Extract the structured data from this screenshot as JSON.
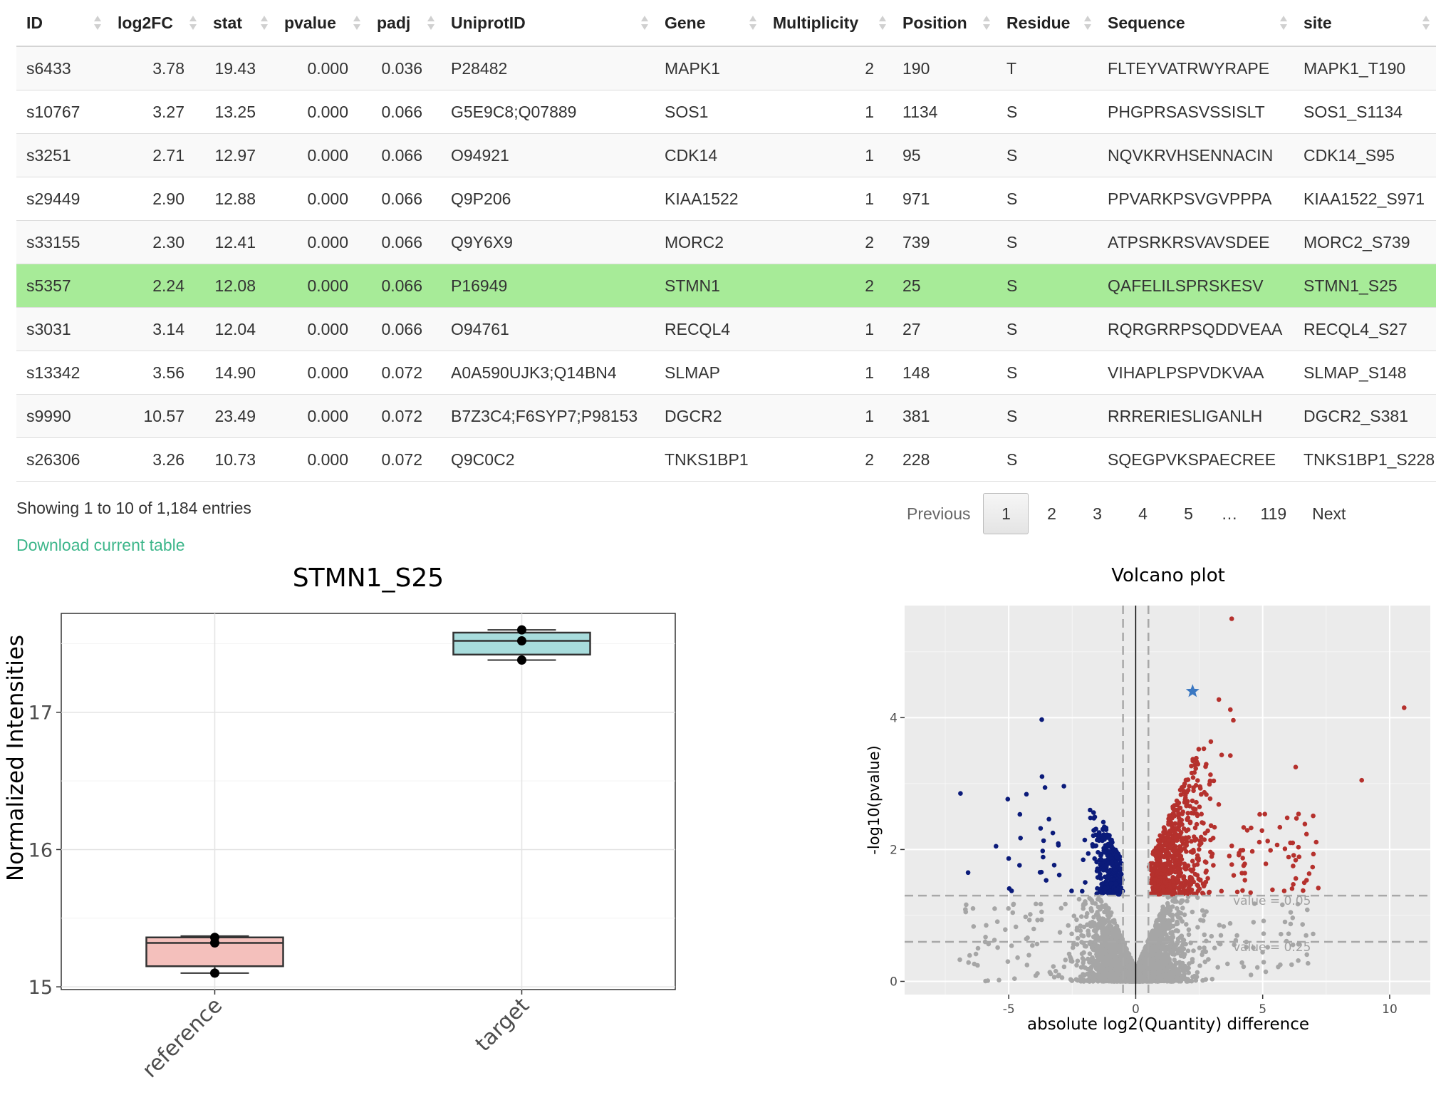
{
  "table": {
    "columns": [
      {
        "key": "id",
        "label": "ID",
        "width": 128,
        "align": "left"
      },
      {
        "key": "log2fc",
        "label": "log2FC",
        "width": 134,
        "align": "right"
      },
      {
        "key": "stat",
        "label": "stat",
        "width": 100,
        "align": "right"
      },
      {
        "key": "pvalue",
        "label": "pvalue",
        "width": 130,
        "align": "right"
      },
      {
        "key": "padj",
        "label": "padj",
        "width": 104,
        "align": "right"
      },
      {
        "key": "uniprot",
        "label": "UniprotID",
        "width": 300,
        "align": "left"
      },
      {
        "key": "gene",
        "label": "Gene",
        "width": 152,
        "align": "left"
      },
      {
        "key": "multiplicity",
        "label": "Multiplicity",
        "width": 182,
        "align": "right"
      },
      {
        "key": "position",
        "label": "Position",
        "width": 146,
        "align": "left"
      },
      {
        "key": "residue",
        "label": "Residue",
        "width": 142,
        "align": "left"
      },
      {
        "key": "sequence",
        "label": "Sequence",
        "width": 275,
        "align": "left"
      },
      {
        "key": "site",
        "label": "site",
        "width": 200,
        "align": "left"
      }
    ],
    "selected_row": 5,
    "rows": [
      {
        "id": "s6433",
        "log2fc": "3.78",
        "stat": "19.43",
        "pvalue": "0.000",
        "padj": "0.036",
        "uniprot": "P28482",
        "gene": "MAPK1",
        "multiplicity": "2",
        "position": "190",
        "residue": "T",
        "sequence": "FLTEYVATRWYRAPE",
        "site": "MAPK1_T190"
      },
      {
        "id": "s10767",
        "log2fc": "3.27",
        "stat": "13.25",
        "pvalue": "0.000",
        "padj": "0.066",
        "uniprot": "G5E9C8;Q07889",
        "gene": "SOS1",
        "multiplicity": "1",
        "position": "1134",
        "residue": "S",
        "sequence": "PHGPRSASVSSISLT",
        "site": "SOS1_S1134"
      },
      {
        "id": "s3251",
        "log2fc": "2.71",
        "stat": "12.97",
        "pvalue": "0.000",
        "padj": "0.066",
        "uniprot": "O94921",
        "gene": "CDK14",
        "multiplicity": "1",
        "position": "95",
        "residue": "S",
        "sequence": "NQVKRVHSENNACIN",
        "site": "CDK14_S95"
      },
      {
        "id": "s29449",
        "log2fc": "2.90",
        "stat": "12.88",
        "pvalue": "0.000",
        "padj": "0.066",
        "uniprot": "Q9P206",
        "gene": "KIAA1522",
        "multiplicity": "1",
        "position": "971",
        "residue": "S",
        "sequence": "PPVARKPSVGVPPPA",
        "site": "KIAA1522_S971"
      },
      {
        "id": "s33155",
        "log2fc": "2.30",
        "stat": "12.41",
        "pvalue": "0.000",
        "padj": "0.066",
        "uniprot": "Q9Y6X9",
        "gene": "MORC2",
        "multiplicity": "2",
        "position": "739",
        "residue": "S",
        "sequence": "ATPSRKRSVAVSDEE",
        "site": "MORC2_S739"
      },
      {
        "id": "s5357",
        "log2fc": "2.24",
        "stat": "12.08",
        "pvalue": "0.000",
        "padj": "0.066",
        "uniprot": "P16949",
        "gene": "STMN1",
        "multiplicity": "2",
        "position": "25",
        "residue": "S",
        "sequence": "QAFELILSPRSKESV",
        "site": "STMN1_S25"
      },
      {
        "id": "s3031",
        "log2fc": "3.14",
        "stat": "12.04",
        "pvalue": "0.000",
        "padj": "0.066",
        "uniprot": "O94761",
        "gene": "RECQL4",
        "multiplicity": "1",
        "position": "27",
        "residue": "S",
        "sequence": "RQRGRRPSQDDVEAA",
        "site": "RECQL4_S27"
      },
      {
        "id": "s13342",
        "log2fc": "3.56",
        "stat": "14.90",
        "pvalue": "0.000",
        "padj": "0.072",
        "uniprot": "A0A590UJK3;Q14BN4",
        "gene": "SLMAP",
        "multiplicity": "1",
        "position": "148",
        "residue": "S",
        "sequence": "VIHAPLPSPVDKVAA",
        "site": "SLMAP_S148"
      },
      {
        "id": "s9990",
        "log2fc": "10.57",
        "stat": "23.49",
        "pvalue": "0.000",
        "padj": "0.072",
        "uniprot": "B7Z3C4;F6SYP7;P98153",
        "gene": "DGCR2",
        "multiplicity": "1",
        "position": "381",
        "residue": "S",
        "sequence": "RRRERIESLIGANLH",
        "site": "DGCR2_S381"
      },
      {
        "id": "s26306",
        "log2fc": "3.26",
        "stat": "10.73",
        "pvalue": "0.000",
        "padj": "0.072",
        "uniprot": "Q9C0C2",
        "gene": "TNKS1BP1",
        "multiplicity": "2",
        "position": "228",
        "residue": "S",
        "sequence": "SQEGPVKSPAECREE",
        "site": "TNKS1BP1_S228"
      }
    ],
    "info": "Showing 1 to 10 of 1,184 entries",
    "download_label": "Download current table"
  },
  "pagination": {
    "previous": "Previous",
    "pages": [
      "1",
      "2",
      "3",
      "4",
      "5"
    ],
    "ellipsis": "…",
    "last": "119",
    "next": "Next",
    "current": "1"
  },
  "chart_data": [
    {
      "type": "box",
      "title": "STMN1_S25",
      "xlabel": "",
      "ylabel": "Normalized Intensities",
      "ylim": [
        14.98,
        17.72
      ],
      "yticks": [
        15,
        16,
        17
      ],
      "categories": [
        "reference",
        "target"
      ],
      "boxes": [
        {
          "category": "reference",
          "min": 15.1,
          "q1": 15.15,
          "median": 15.32,
          "q3": 15.36,
          "max": 15.37,
          "points": [
            15.1,
            15.32,
            15.36
          ],
          "fill": "#f4c0bc"
        },
        {
          "category": "target",
          "min": 17.38,
          "q1": 17.42,
          "median": 17.52,
          "q3": 17.58,
          "max": 17.6,
          "points": [
            17.38,
            17.52,
            17.6
          ],
          "fill": "#a8dcdc"
        }
      ]
    },
    {
      "type": "scatter",
      "title": "Volcano plot",
      "xlabel": "absolute log2(Quantity) difference",
      "ylabel": "-log10(pvalue)",
      "xlim": [
        -9.1,
        11.6
      ],
      "ylim": [
        -0.2,
        5.7
      ],
      "xticks": [
        -5,
        0,
        5,
        10
      ],
      "yticks": [
        0,
        2,
        4
      ],
      "vlines": [
        -0.5,
        0.5
      ],
      "hlines": [
        {
          "y": 1.3,
          "label": "value = 0.05"
        },
        {
          "y": 0.6,
          "label": "value = 0.25"
        }
      ],
      "colors": {
        "up": "#b5312d",
        "down": "#0b1b7a",
        "ns": "#a6a6a6",
        "highlight": "#3b78c2"
      },
      "highlight": {
        "x": 2.24,
        "y": 4.4,
        "label": "STMN1_S25"
      },
      "notable_points": [
        {
          "x": 3.78,
          "y": 5.5,
          "group": "up"
        },
        {
          "x": 10.57,
          "y": 4.15,
          "group": "up"
        },
        {
          "x": 8.9,
          "y": 3.05,
          "group": "up"
        },
        {
          "x": 6.3,
          "y": 3.25,
          "group": "up"
        },
        {
          "x": -3.7,
          "y": 3.97,
          "group": "down"
        },
        {
          "x": -6.9,
          "y": 2.85,
          "group": "down"
        },
        {
          "x": -5.5,
          "y": 2.05,
          "group": "down"
        },
        {
          "x": -6.6,
          "y": 1.65,
          "group": "down"
        }
      ]
    }
  ]
}
